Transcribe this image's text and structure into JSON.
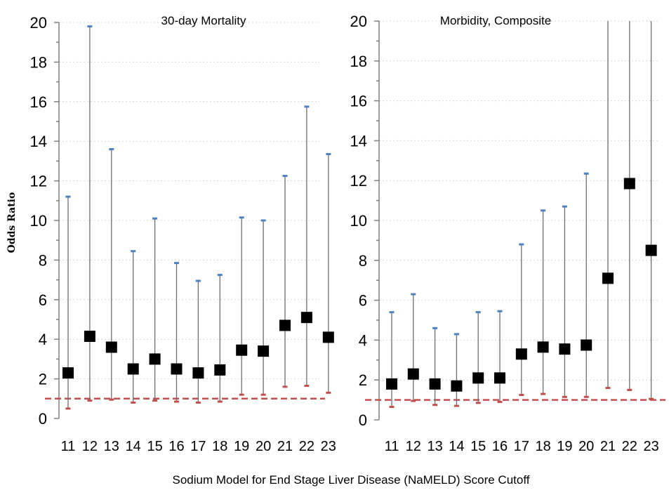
{
  "figure": {
    "ylabel": "Odds Ratio",
    "xlabel": "Sodium Model for End Stage Liver Disease (NaMELD) Score Cutoff"
  },
  "colors": {
    "marker": "#000000",
    "upper_cap": "#4f81bd",
    "lower_cap": "#c0504d",
    "reference_line": "#c0504d",
    "whisker": "#6e6e6e",
    "grid": "#d4d4d4"
  },
  "chart_data": [
    {
      "type": "scatter",
      "title": "30-day Mortality",
      "ylabel": "Odds Ratio",
      "xlabel": "Sodium Model for End Stage Liver Disease (NaMELD) Score Cutoff",
      "categories": [
        "11",
        "12",
        "13",
        "14",
        "15",
        "16",
        "17",
        "18",
        "19",
        "20",
        "21",
        "22",
        "23"
      ],
      "series": [
        {
          "values": [
            2.3,
            4.15,
            3.6,
            2.5,
            3.0,
            2.5,
            2.3,
            2.45,
            3.45,
            3.4,
            4.7,
            5.1,
            4.1
          ]
        }
      ],
      "lower_ci": [
        0.5,
        0.9,
        0.95,
        0.8,
        0.9,
        0.85,
        0.8,
        0.85,
        1.2,
        1.2,
        1.6,
        1.65,
        1.3
      ],
      "upper_ci": [
        11.2,
        19.8,
        13.6,
        8.45,
        10.1,
        7.85,
        6.95,
        7.25,
        10.15,
        10.0,
        12.25,
        15.75,
        13.35
      ],
      "reference_line": 1,
      "ylim": [
        0,
        20
      ],
      "yticks": [
        0,
        2,
        4,
        6,
        8,
        10,
        12,
        14,
        16,
        18,
        20
      ],
      "grid": true
    },
    {
      "type": "scatter",
      "title": "Morbidity, Composite",
      "ylabel": "",
      "xlabel": "Sodium Model for End Stage Liver Disease (NaMELD) Score Cutoff",
      "categories": [
        "11",
        "12",
        "13",
        "14",
        "15",
        "16",
        "17",
        "18",
        "19",
        "20",
        "21",
        "22",
        "23"
      ],
      "series": [
        {
          "values": [
            1.8,
            2.3,
            1.8,
            1.7,
            2.1,
            2.1,
            3.3,
            3.65,
            3.55,
            3.75,
            7.1,
            11.85,
            8.5
          ]
        }
      ],
      "lower_ci": [
        0.65,
        0.95,
        0.75,
        0.7,
        0.85,
        0.9,
        1.25,
        1.3,
        1.15,
        1.15,
        1.6,
        1.5,
        1.05
      ],
      "upper_ci": [
        5.4,
        6.3,
        4.6,
        4.3,
        5.4,
        5.45,
        8.8,
        10.5,
        10.7,
        12.35,
        20,
        20,
        20
      ],
      "reference_line": 1,
      "ylim": [
        0,
        20
      ],
      "yticks": [
        0,
        2,
        4,
        6,
        8,
        10,
        12,
        14,
        16,
        18,
        20
      ],
      "grid": true
    }
  ]
}
